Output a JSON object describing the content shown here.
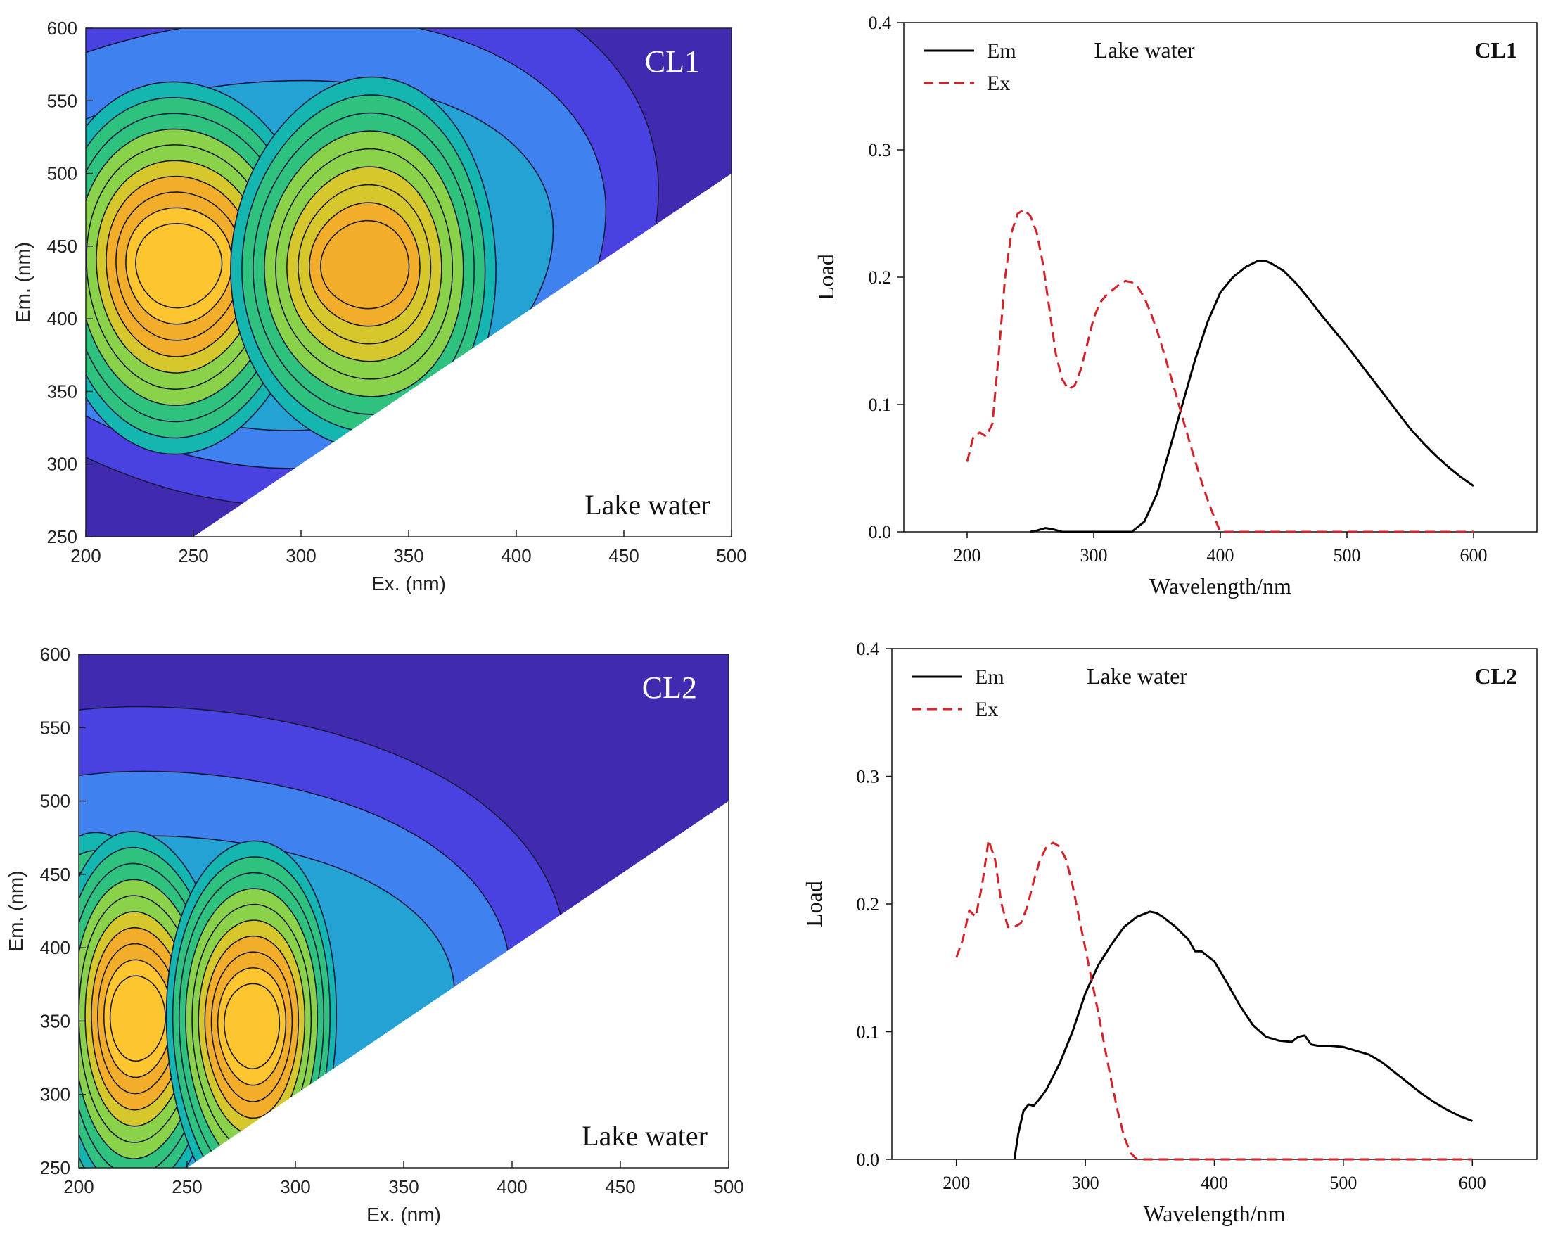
{
  "figure": {
    "panels": [
      "CL1",
      "CL2"
    ]
  },
  "chart_data": [
    {
      "type": "heatmap",
      "id": "eem_cl1",
      "title": "",
      "component": "CL1",
      "annotation": "Lake water",
      "xlabel": "Ex. (nm)",
      "ylabel": "Em. (nm)",
      "xlim": [
        200,
        500
      ],
      "ylim": [
        250,
        600
      ],
      "xticks": [
        200,
        250,
        300,
        350,
        400,
        450,
        500
      ],
      "yticks": [
        250,
        300,
        350,
        400,
        450,
        500,
        550,
        600
      ],
      "peaks": [
        {
          "ex": 243,
          "em": 437,
          "level": 1.0
        },
        {
          "ex": 330,
          "em": 437,
          "level": 0.8
        }
      ],
      "colors": {
        "background": "#3f2ab0",
        "masked": "#ffffff"
      }
    },
    {
      "type": "line",
      "id": "load_cl1",
      "component": "CL1",
      "annotation": "Lake water",
      "xlabel": "Wavelength/nm",
      "ylabel": "Load",
      "xlim": [
        150,
        650
      ],
      "ylim": [
        0,
        0.4
      ],
      "xticks": [
        200,
        300,
        400,
        500,
        600
      ],
      "yticks": [
        "0.0",
        "0.1",
        "0.2",
        "0.3",
        "0.4"
      ],
      "legend_position": "top-left",
      "series": [
        {
          "name": "Em",
          "style": "solid",
          "color": "#000000",
          "x": [
            250,
            255,
            262,
            268,
            275,
            330,
            340,
            350,
            360,
            370,
            380,
            390,
            400,
            410,
            420,
            430,
            435,
            440,
            450,
            460,
            470,
            480,
            490,
            500,
            510,
            520,
            530,
            540,
            550,
            560,
            570,
            580,
            590,
            600
          ],
          "y": [
            0,
            0.001,
            0.003,
            0.002,
            0,
            0,
            0.008,
            0.03,
            0.065,
            0.1,
            0.135,
            0.165,
            0.188,
            0.2,
            0.208,
            0.213,
            0.213,
            0.211,
            0.205,
            0.195,
            0.183,
            0.17,
            0.158,
            0.146,
            0.133,
            0.12,
            0.107,
            0.094,
            0.081,
            0.07,
            0.06,
            0.051,
            0.043,
            0.036
          ]
        },
        {
          "name": "Ex",
          "style": "dashed",
          "color": "#d2232a",
          "x": [
            200,
            205,
            210,
            215,
            220,
            225,
            230,
            235,
            240,
            245,
            250,
            255,
            260,
            265,
            270,
            275,
            280,
            285,
            290,
            295,
            300,
            305,
            310,
            315,
            320,
            325,
            330,
            335,
            340,
            345,
            350,
            355,
            360,
            365,
            370,
            375,
            380,
            385,
            390,
            395,
            400,
            420,
            450,
            500,
            550,
            600
          ],
          "y": [
            0.055,
            0.075,
            0.078,
            0.075,
            0.085,
            0.14,
            0.2,
            0.235,
            0.25,
            0.253,
            0.248,
            0.235,
            0.21,
            0.175,
            0.14,
            0.12,
            0.112,
            0.115,
            0.128,
            0.148,
            0.168,
            0.18,
            0.186,
            0.19,
            0.194,
            0.197,
            0.196,
            0.192,
            0.184,
            0.172,
            0.158,
            0.142,
            0.125,
            0.108,
            0.09,
            0.073,
            0.056,
            0.04,
            0.025,
            0.012,
            0,
            0,
            0,
            0,
            0,
            0
          ]
        }
      ]
    },
    {
      "type": "heatmap",
      "id": "eem_cl2",
      "title": "",
      "component": "CL2",
      "annotation": "Lake water",
      "xlabel": "Ex. (nm)",
      "ylabel": "Em. (nm)",
      "xlim": [
        200,
        500
      ],
      "ylim": [
        250,
        600
      ],
      "xticks": [
        200,
        250,
        300,
        350,
        400,
        450,
        500
      ],
      "yticks": [
        250,
        300,
        350,
        400,
        450,
        500,
        550,
        600
      ],
      "peaks": [
        {
          "ex": 210,
          "em": 350,
          "level": 0.75
        },
        {
          "ex": 227,
          "em": 352,
          "level": 1.0
        },
        {
          "ex": 280,
          "em": 347,
          "level": 1.0
        }
      ],
      "colors": {
        "background": "#3f2ab0",
        "masked": "#ffffff"
      }
    },
    {
      "type": "line",
      "id": "load_cl2",
      "component": "CL2",
      "annotation": "Lake water",
      "xlabel": "Wavelength/nm",
      "ylabel": "Load",
      "xlim": [
        150,
        650
      ],
      "ylim": [
        0,
        0.4
      ],
      "xticks": [
        200,
        300,
        400,
        500,
        600
      ],
      "yticks": [
        "0.0",
        "0.1",
        "0.2",
        "0.3",
        "0.4"
      ],
      "legend_position": "top-left",
      "series": [
        {
          "name": "Em",
          "style": "solid",
          "color": "#000000",
          "x": [
            245,
            248,
            252,
            256,
            260,
            265,
            270,
            275,
            280,
            290,
            300,
            310,
            320,
            330,
            340,
            350,
            355,
            360,
            370,
            380,
            385,
            390,
            400,
            410,
            420,
            430,
            440,
            450,
            460,
            465,
            470,
            475,
            480,
            490,
            500,
            510,
            520,
            530,
            540,
            550,
            560,
            570,
            580,
            590,
            600
          ],
          "y": [
            0,
            0.02,
            0.038,
            0.043,
            0.042,
            0.048,
            0.055,
            0.065,
            0.075,
            0.1,
            0.13,
            0.152,
            0.168,
            0.182,
            0.19,
            0.194,
            0.193,
            0.19,
            0.182,
            0.172,
            0.163,
            0.163,
            0.155,
            0.138,
            0.12,
            0.105,
            0.096,
            0.093,
            0.092,
            0.096,
            0.097,
            0.09,
            0.089,
            0.089,
            0.088,
            0.085,
            0.082,
            0.076,
            0.068,
            0.06,
            0.052,
            0.045,
            0.039,
            0.034,
            0.03
          ]
        },
        {
          "name": "Ex",
          "style": "dashed",
          "color": "#d2232a",
          "x": [
            200,
            205,
            210,
            215,
            220,
            225,
            230,
            235,
            240,
            245,
            250,
            255,
            260,
            265,
            270,
            275,
            280,
            285,
            290,
            295,
            300,
            305,
            310,
            315,
            320,
            325,
            330,
            335,
            340,
            345,
            400,
            450,
            500,
            550,
            600
          ],
          "y": [
            0.158,
            0.172,
            0.195,
            0.19,
            0.215,
            0.25,
            0.235,
            0.2,
            0.182,
            0.182,
            0.185,
            0.198,
            0.218,
            0.235,
            0.245,
            0.248,
            0.245,
            0.235,
            0.215,
            0.19,
            0.165,
            0.14,
            0.115,
            0.088,
            0.062,
            0.038,
            0.018,
            0.005,
            0,
            0,
            0,
            0,
            0,
            0,
            0
          ]
        }
      ]
    }
  ]
}
